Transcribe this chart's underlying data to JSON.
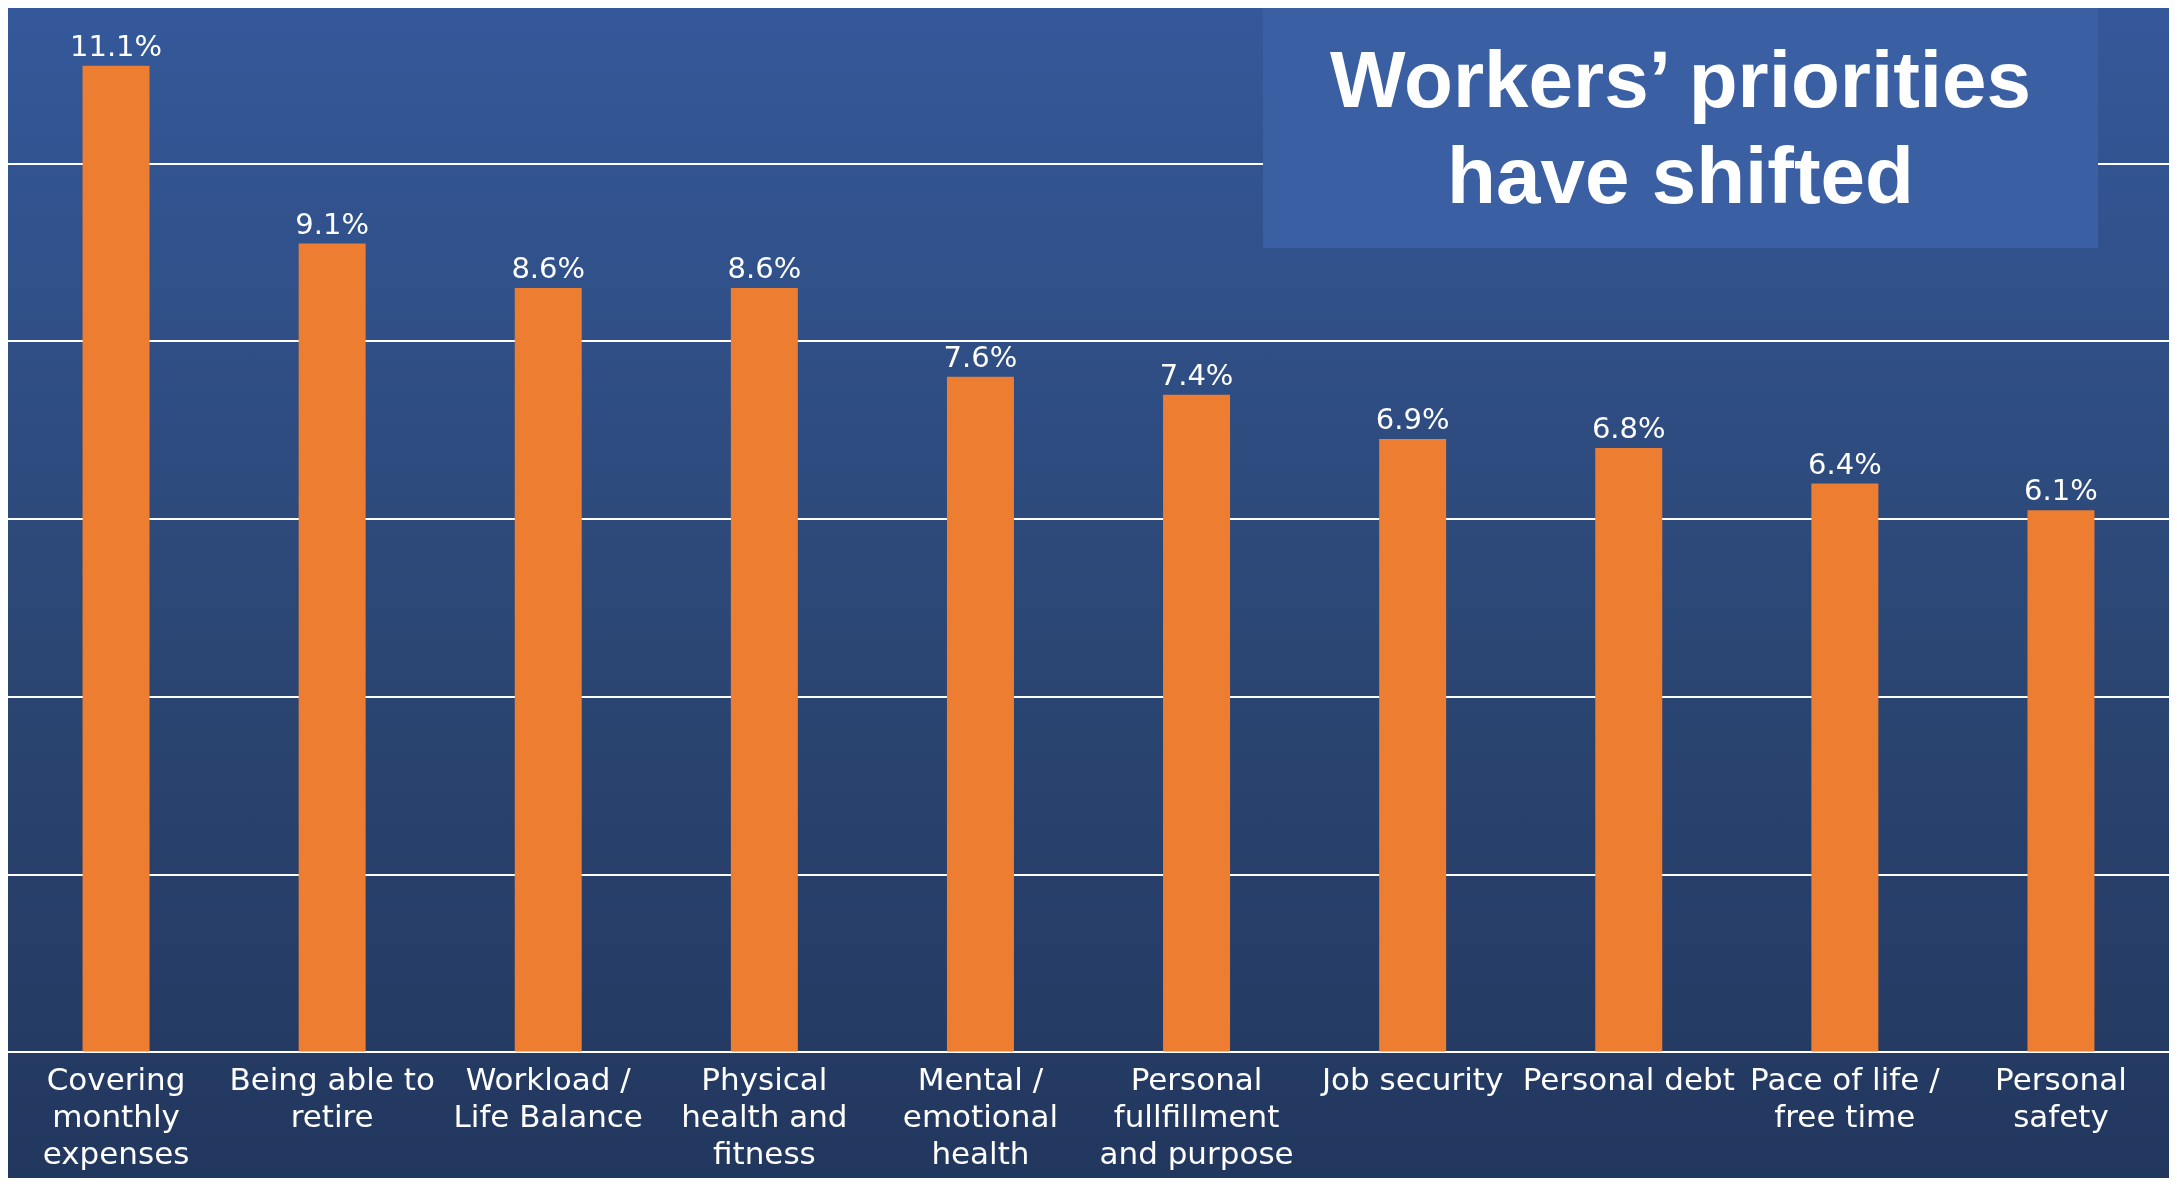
{
  "chart_data": {
    "type": "bar",
    "title": "Workers’ priorities have shifted",
    "categories": [
      "Covering monthly expenses",
      "Being able to retire",
      "Workload / Life Balance",
      "Physical health and fitness",
      "Mental / emotional health",
      "Personal fullfillment and purpose",
      "Job security",
      "Personal debt",
      "Pace of life / free time",
      "Personal safety"
    ],
    "values": [
      11.1,
      9.1,
      8.6,
      8.6,
      7.6,
      7.4,
      6.9,
      6.8,
      6.4,
      6.1
    ],
    "value_labels": [
      "11.1%",
      "9.1%",
      "8.6%",
      "8.6%",
      "7.6%",
      "7.4%",
      "6.9%",
      "6.8%",
      "6.4%",
      "6.1%"
    ],
    "color": "#ed7d31",
    "ylim": [
      0,
      11.75
    ],
    "yticks": [
      {
        "value": 0,
        "label": null
      },
      {
        "value": 2,
        "label": null
      },
      {
        "value": 4,
        "label": null
      },
      {
        "value": 6,
        "label": null
      },
      {
        "value": 8,
        "label": null
      },
      {
        "value": 10,
        "label": null
      }
    ],
    "grid": "y",
    "tick_labels": "x",
    "legend": false
  }
}
